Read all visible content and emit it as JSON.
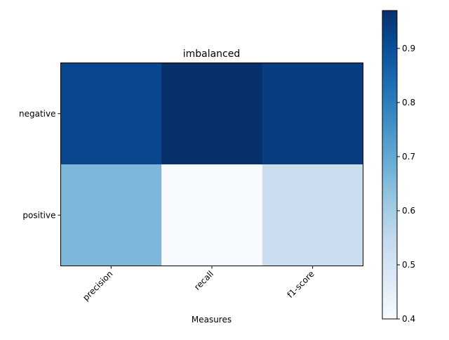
{
  "chart_data": {
    "type": "heatmap",
    "title": "imbalanced",
    "xlabel": "Measures",
    "ylabel": "",
    "x_categories": [
      "precision",
      "recall",
      "f1-score"
    ],
    "y_categories": [
      "negative",
      "positive"
    ],
    "values": [
      [
        0.92,
        0.97,
        0.94
      ],
      [
        0.66,
        0.4,
        0.53
      ]
    ],
    "colormap": "Blues",
    "colorbar": {
      "min": 0.4,
      "max": 0.97,
      "ticks": [
        "0.4",
        "0.5",
        "0.6",
        "0.7",
        "0.8",
        "0.9"
      ]
    },
    "grid": false
  }
}
